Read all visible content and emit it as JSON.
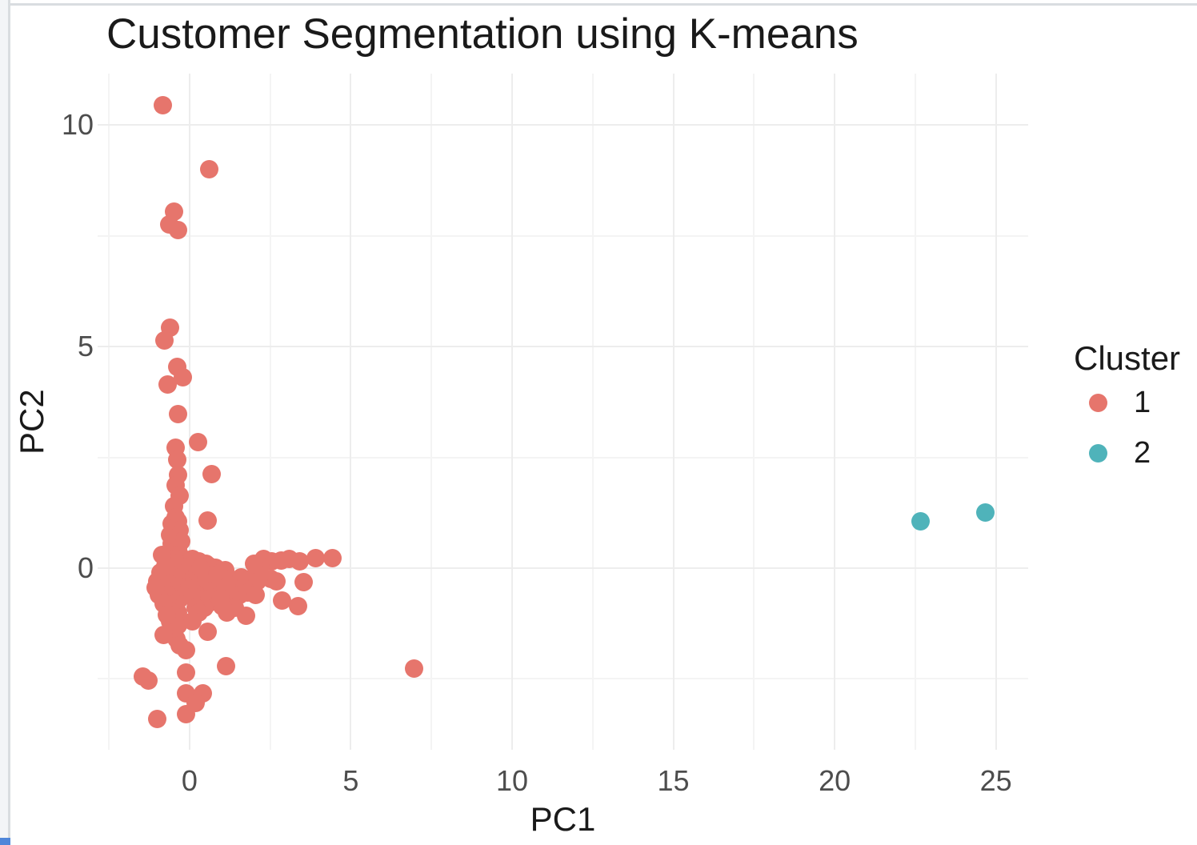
{
  "window": {
    "edge_strip_color": "#f3f5f7",
    "border_color": "#d9dde0",
    "corner_accent_color": "#4f86d9"
  },
  "chart_data": {
    "type": "scatter",
    "title": "Customer Segmentation using K-means",
    "xlabel": "PC1",
    "ylabel": "PC2",
    "x_ticks": [
      0,
      5,
      10,
      15,
      20,
      25
    ],
    "y_ticks": [
      0,
      5,
      10
    ],
    "x_minor_ticks": [
      -2.5,
      2.5,
      7.5,
      12.5,
      17.5,
      22.5
    ],
    "y_minor_ticks": [
      -2.5,
      2.5,
      7.5
    ],
    "xlim": [
      -2.85,
      26.0
    ],
    "ylim": [
      -4.1,
      11.16
    ],
    "grid": true,
    "background": "#ffffff",
    "gridline_color": "#ededed",
    "tick_label_color": "#4d4d4d",
    "text_color": "#1a1a1a",
    "legend": {
      "title": "Cluster",
      "position": "right",
      "entries": [
        {
          "label": "1",
          "color": "#e6756c"
        },
        {
          "label": "2",
          "color": "#4fb3ba"
        }
      ]
    },
    "series": [
      {
        "name": "1",
        "color": "#e6756c",
        "points": [
          [
            -0.84,
            10.45
          ],
          [
            0.6,
            9.0
          ],
          [
            -0.47,
            8.05
          ],
          [
            -0.62,
            7.76
          ],
          [
            -0.35,
            7.63
          ],
          [
            -0.6,
            5.42
          ],
          [
            -0.79,
            5.14
          ],
          [
            -0.37,
            4.55
          ],
          [
            -0.22,
            4.3
          ],
          [
            -0.69,
            4.15
          ],
          [
            -0.35,
            3.47
          ],
          [
            0.27,
            2.85
          ],
          [
            -0.42,
            2.71
          ],
          [
            -0.37,
            2.44
          ],
          [
            -0.35,
            2.11
          ],
          [
            0.69,
            2.13
          ],
          [
            -0.42,
            1.86
          ],
          [
            -0.3,
            1.63
          ],
          [
            -0.47,
            1.39
          ],
          [
            0.57,
            1.08
          ],
          [
            -0.42,
            1.15
          ],
          [
            -0.55,
            1.0
          ],
          [
            -0.35,
            1.05
          ],
          [
            -0.5,
            0.9
          ],
          [
            -0.3,
            0.85
          ],
          [
            -0.6,
            0.75
          ],
          [
            -0.4,
            0.7
          ],
          [
            -0.25,
            0.6
          ],
          [
            -0.55,
            0.55
          ],
          [
            -0.35,
            0.45
          ],
          [
            -0.5,
            0.35
          ],
          [
            -0.65,
            0.3
          ],
          [
            -0.3,
            0.3
          ],
          [
            -0.45,
            0.2
          ],
          [
            -0.6,
            0.1
          ],
          [
            -0.35,
            0.1
          ],
          [
            -0.5,
            0.0
          ],
          [
            -0.4,
            -0.1
          ],
          [
            -0.6,
            -0.15
          ],
          [
            -0.3,
            -0.2
          ],
          [
            -0.5,
            -0.3
          ],
          [
            -0.65,
            -0.35
          ],
          [
            -0.35,
            -0.4
          ],
          [
            -0.5,
            -0.5
          ],
          [
            -0.4,
            -0.6
          ],
          [
            -0.6,
            -0.65
          ],
          [
            -0.3,
            -0.7
          ],
          [
            -0.45,
            -0.8
          ],
          [
            -0.55,
            -0.9
          ],
          [
            -0.35,
            -1.0
          ],
          [
            -0.45,
            -1.1
          ],
          [
            -0.6,
            -1.2
          ],
          [
            -0.35,
            -1.3
          ],
          [
            -0.5,
            -1.45
          ],
          [
            -0.4,
            -1.6
          ],
          [
            -0.3,
            -1.75
          ],
          [
            -0.9,
            -0.1
          ],
          [
            -0.85,
            -0.35
          ],
          [
            -0.95,
            -0.6
          ],
          [
            -0.8,
            -0.8
          ],
          [
            -1.0,
            -0.3
          ],
          [
            -0.75,
            0.05
          ],
          [
            -0.85,
            0.3
          ],
          [
            -1.05,
            -0.45
          ],
          [
            -0.7,
            -1.05
          ],
          [
            -0.8,
            -1.5
          ],
          [
            0.1,
            0.2
          ],
          [
            0.3,
            0.15
          ],
          [
            0.5,
            0.1
          ],
          [
            0.2,
            0.0
          ],
          [
            0.4,
            -0.05
          ],
          [
            0.6,
            0.05
          ],
          [
            0.8,
            0.0
          ],
          [
            0.15,
            -0.15
          ],
          [
            0.35,
            -0.2
          ],
          [
            0.55,
            -0.15
          ],
          [
            0.75,
            -0.2
          ],
          [
            0.95,
            -0.1
          ],
          [
            1.1,
            -0.05
          ],
          [
            0.25,
            -0.35
          ],
          [
            0.45,
            -0.4
          ],
          [
            0.65,
            -0.35
          ],
          [
            0.85,
            -0.45
          ],
          [
            1.05,
            -0.3
          ],
          [
            1.25,
            -0.25
          ],
          [
            0.2,
            -0.55
          ],
          [
            0.4,
            -0.6
          ],
          [
            0.6,
            -0.55
          ],
          [
            0.8,
            -0.65
          ],
          [
            1.0,
            -0.55
          ],
          [
            1.2,
            -0.5
          ],
          [
            1.45,
            -0.35
          ],
          [
            1.6,
            -0.2
          ],
          [
            1.75,
            -0.3
          ],
          [
            1.9,
            -0.25
          ],
          [
            2.1,
            -0.3
          ],
          [
            0.3,
            -0.75
          ],
          [
            0.55,
            -0.8
          ],
          [
            0.75,
            -0.75
          ],
          [
            1.0,
            -0.85
          ],
          [
            1.3,
            -0.7
          ],
          [
            1.55,
            -0.6
          ],
          [
            1.8,
            -0.55
          ],
          [
            2.05,
            -0.6
          ],
          [
            1.4,
            -0.9
          ],
          [
            1.15,
            -1.0
          ],
          [
            0.0,
            -0.45
          ],
          [
            0.15,
            -0.3
          ],
          [
            0.05,
            0.05
          ],
          [
            0.25,
            -0.1
          ],
          [
            0.5,
            -0.25
          ],
          [
            0.7,
            -0.5
          ],
          [
            0.9,
            -0.3
          ],
          [
            0.1,
            -0.65
          ],
          [
            0.6,
            -0.7
          ],
          [
            0.35,
            0.0
          ],
          [
            0.85,
            -0.15
          ],
          [
            1.1,
            -0.45
          ],
          [
            0.95,
            -0.7
          ],
          [
            0.45,
            -0.9
          ],
          [
            0.2,
            -0.9
          ],
          [
            2.3,
            0.2
          ],
          [
            2.55,
            0.15
          ],
          [
            2.85,
            0.18
          ],
          [
            3.1,
            0.2
          ],
          [
            3.42,
            0.16
          ],
          [
            3.92,
            0.22
          ],
          [
            4.44,
            0.23
          ],
          [
            2.51,
            -0.25
          ],
          [
            2.7,
            -0.3
          ],
          [
            3.55,
            -0.31
          ],
          [
            2.2,
            0.05
          ],
          [
            2.0,
            0.1
          ],
          [
            2.88,
            -0.74
          ],
          [
            3.37,
            -0.85
          ],
          [
            1.76,
            -1.08
          ],
          [
            0.57,
            -1.44
          ],
          [
            1.12,
            -2.22
          ],
          [
            -0.1,
            -1.86
          ],
          [
            -0.1,
            -2.35
          ],
          [
            -0.1,
            -2.83
          ],
          [
            0.4,
            -2.83
          ],
          [
            -0.1,
            -3.29
          ],
          [
            6.95,
            -2.26
          ],
          [
            -1.27,
            -2.53
          ],
          [
            -1.45,
            -2.45
          ],
          [
            -1.0,
            -3.4
          ],
          [
            0.3,
            -1.0
          ],
          [
            0.1,
            -1.2
          ],
          [
            0.2,
            -3.05
          ]
        ]
      },
      {
        "name": "2",
        "color": "#4fb3ba",
        "points": [
          [
            22.66,
            1.06
          ],
          [
            24.67,
            1.26
          ]
        ]
      }
    ]
  }
}
